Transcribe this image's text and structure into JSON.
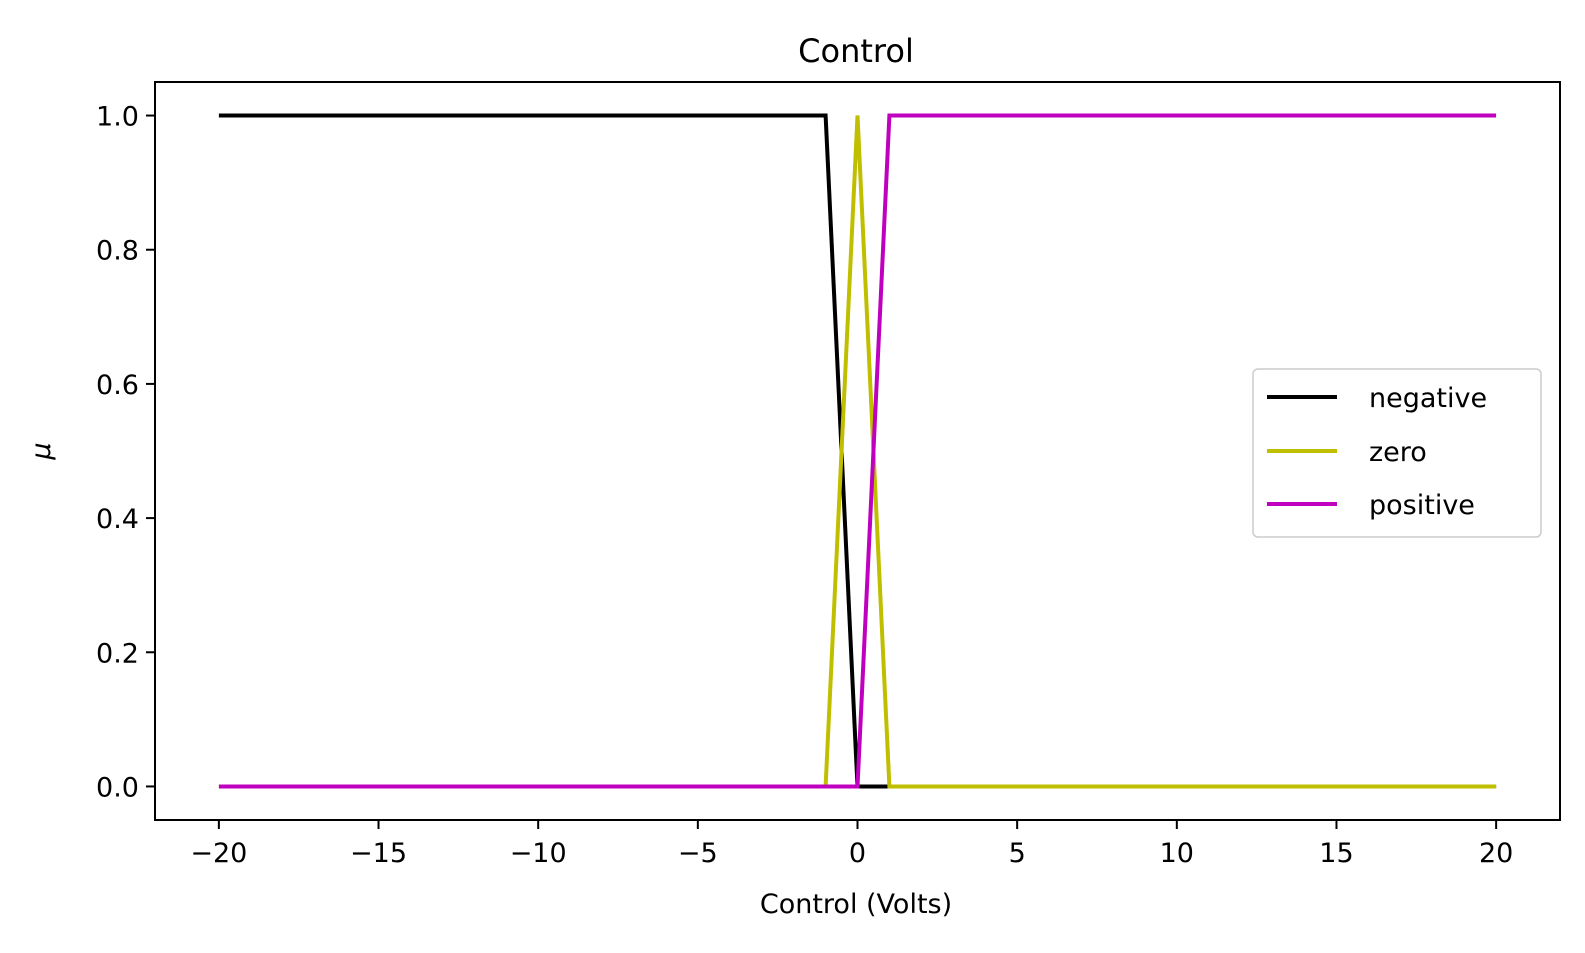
{
  "chart_data": {
    "type": "line",
    "title": "Control",
    "xlabel": "Control (Volts)",
    "ylabel": "μ",
    "xlim": [
      -22,
      22
    ],
    "ylim": [
      -0.05,
      1.05
    ],
    "xticks": [
      -20,
      -15,
      -10,
      -5,
      0,
      5,
      10,
      15,
      20
    ],
    "xtick_labels": [
      "−20",
      "−15",
      "−10",
      "−5",
      "0",
      "5",
      "10",
      "15",
      "20"
    ],
    "yticks": [
      0.0,
      0.2,
      0.4,
      0.6,
      0.8,
      1.0
    ],
    "ytick_labels": [
      "0.0",
      "0.2",
      "0.4",
      "0.6",
      "0.8",
      "1.0"
    ],
    "grid": false,
    "legend_position": "center-right",
    "series": [
      {
        "name": "negative",
        "color": "#000000",
        "x": [
          -20,
          -1,
          0,
          1,
          20
        ],
        "y": [
          1,
          1,
          0,
          0,
          0
        ]
      },
      {
        "name": "zero",
        "color": "#bfbf00",
        "x": [
          -20,
          -1,
          0,
          1,
          20
        ],
        "y": [
          0,
          0,
          1,
          0,
          0
        ]
      },
      {
        "name": "positive",
        "color": "#bf00bf",
        "x": [
          -20,
          0,
          1,
          20
        ],
        "y": [
          0,
          0,
          1,
          1
        ]
      }
    ]
  }
}
